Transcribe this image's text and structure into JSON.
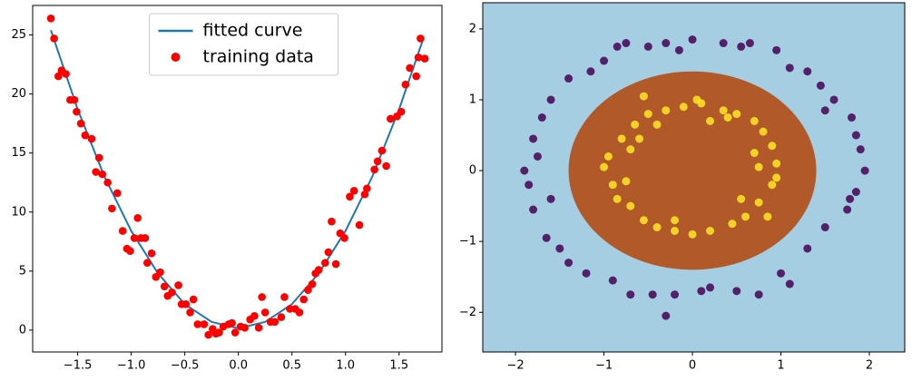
{
  "chart_data": [
    {
      "type": "line",
      "xlim": [
        -1.92,
        1.9
      ],
      "ylim": [
        -1.85,
        27.5
      ],
      "xticks": [
        {
          "value": -1.5,
          "label": "−1.5"
        },
        {
          "value": -1.0,
          "label": "−1.0"
        },
        {
          "value": -0.5,
          "label": "−0.5"
        },
        {
          "value": 0.0,
          "label": "0.0"
        },
        0.5,
        {
          "value": 1.0,
          "label": "1.0"
        },
        1.5
      ],
      "yticks": [
        0,
        5,
        10,
        15,
        20,
        25
      ],
      "legend": "upper center",
      "series": [
        {
          "name": "fitted curve",
          "type": "line",
          "color": "#1f77b4",
          "x": [
            -1.75,
            -1.5,
            -1.25,
            -1,
            -0.75,
            -0.5,
            -0.25,
            0,
            0.25,
            0.5,
            0.75,
            1,
            1.25,
            1.5,
            1.73
          ],
          "values": [
            25.4,
            18.7,
            13.0,
            8.4,
            4.8,
            2.2,
            0.7,
            0.15,
            0.7,
            2.2,
            4.8,
            8.4,
            13.0,
            18.7,
            24.8
          ]
        },
        {
          "name": "training data",
          "type": "scatter",
          "color": "#ff0000",
          "x": [
            -1.75,
            -1.72,
            -1.68,
            -1.65,
            -1.61,
            -1.57,
            -1.53,
            -1.51,
            -1.47,
            -1.43,
            -1.37,
            -1.33,
            -1.3,
            -1.27,
            -1.22,
            -1.18,
            -1.13,
            -1.08,
            -1.04,
            -1.01,
            -0.97,
            -0.94,
            -0.91,
            -0.87,
            -0.85,
            -0.81,
            -0.77,
            -0.73,
            -0.69,
            -0.66,
            -0.62,
            -0.56,
            -0.53,
            -0.49,
            -0.45,
            -0.42,
            -0.38,
            -0.32,
            -0.28,
            -0.24,
            -0.21,
            -0.18,
            -0.14,
            -0.09,
            -0.06,
            -0.03,
            0.02,
            0.06,
            0.11,
            0.15,
            0.19,
            0.22,
            0.25,
            0.3,
            0.34,
            0.4,
            0.43,
            0.48,
            0.53,
            0.57,
            0.61,
            0.65,
            0.69,
            0.72,
            0.75,
            0.81,
            0.84,
            0.87,
            0.91,
            0.95,
            0.99,
            1.04,
            1.08,
            1.13,
            1.18,
            1.2,
            1.27,
            1.3,
            1.34,
            1.38,
            1.42,
            1.48,
            1.52,
            1.56,
            1.6,
            1.66,
            1.68,
            1.7,
            1.74
          ],
          "values": [
            26.4,
            24.7,
            21.5,
            22.0,
            21.7,
            19.5,
            19.5,
            18.5,
            17.5,
            16.5,
            16.2,
            13.4,
            14.6,
            13.2,
            12.5,
            10.3,
            11.6,
            8.4,
            6.9,
            6.7,
            7.8,
            9.5,
            7.8,
            7.8,
            5.7,
            6.5,
            4.5,
            4.9,
            3.7,
            2.9,
            3.2,
            3.8,
            2.2,
            2.2,
            1.5,
            2.6,
            0.5,
            0.5,
            -0.4,
            0.1,
            -0.3,
            -0.2,
            0.3,
            0.5,
            0.6,
            -0.2,
            0.3,
            0.2,
            0.9,
            1.2,
            0.2,
            2.8,
            1.5,
            0.7,
            0.7,
            1.1,
            2.8,
            1.8,
            1.8,
            1.5,
            2.6,
            3.4,
            3.9,
            4.8,
            5.1,
            5.7,
            6.6,
            9.2,
            5.6,
            8.2,
            7.8,
            11.3,
            11.8,
            8.9,
            11.5,
            12.0,
            13.6,
            14.3,
            15.2,
            13.9,
            17.9,
            18.1,
            18.5,
            20.8,
            22.2,
            21.5,
            23.1,
            24.7,
            23.0
          ]
        }
      ]
    },
    {
      "type": "scatter",
      "xlim": [
        -2.37,
        2.4
      ],
      "ylim": [
        -2.56,
        2.37
      ],
      "xticks": [
        {
          "value": -2,
          "label": "−2"
        },
        {
          "value": -1,
          "label": "−1"
        },
        0,
        1,
        2
      ],
      "yticks": [
        {
          "value": -2,
          "label": "−2"
        },
        {
          "value": -1,
          "label": "−1"
        },
        0,
        1,
        2
      ],
      "background": "#a6cee3",
      "regions": [
        {
          "color": "#b15928",
          "center": [
            0,
            0
          ],
          "radius": 1.4
        }
      ],
      "series": [
        {
          "color": "#440154",
          "x": [
            1.95,
            1.9,
            1.85,
            1.8,
            1.6,
            1.45,
            1.3,
            1.1,
            0.95,
            0.65,
            0.35,
            0.0,
            -0.3,
            -0.5,
            -0.75,
            -1.0,
            -1.15,
            -1.4,
            -1.6,
            -1.7,
            -1.8,
            -1.75,
            -1.9,
            -1.85,
            -1.8,
            -1.65,
            -1.5,
            -1.4,
            -1.2,
            -0.9,
            -0.7,
            -0.45,
            -0.2,
            0.1,
            0.5,
            0.75,
            1.0,
            1.3,
            1.5,
            1.75,
            1.85,
            1.78,
            -0.3,
            0.55,
            -0.15,
            1.5,
            -1.6,
            1.1,
            -0.85,
            0.2
          ],
          "values": [
            0.0,
            0.3,
            0.5,
            0.75,
            1.0,
            1.2,
            1.4,
            1.45,
            1.7,
            1.8,
            1.8,
            1.85,
            1.8,
            1.75,
            1.8,
            1.55,
            1.4,
            1.3,
            1.0,
            0.75,
            0.45,
            0.2,
            0.0,
            -0.2,
            -0.55,
            -0.95,
            -1.1,
            -1.3,
            -1.45,
            -1.55,
            -1.75,
            -1.75,
            -1.75,
            -1.7,
            -1.7,
            -1.75,
            -1.45,
            -1.1,
            -0.8,
            -0.55,
            -0.3,
            -0.4,
            -2.05,
            1.75,
            1.7,
            0.85,
            -0.4,
            -1.6,
            1.75,
            -1.65
          ]
        },
        {
          "color": "#fde725",
          "x": [
            0.95,
            0.9,
            0.8,
            0.7,
            0.5,
            0.35,
            0.1,
            -0.1,
            -0.3,
            -0.5,
            -0.65,
            -0.8,
            -0.95,
            -1.0,
            -0.9,
            -0.85,
            -0.7,
            -0.55,
            -0.4,
            -0.2,
            0.0,
            0.2,
            0.45,
            0.6,
            0.75,
            0.9,
            0.95,
            0.7,
            0.75,
            -0.7,
            -0.75,
            0.4,
            -0.4,
            0.2,
            -0.2,
            0.55,
            -0.6,
            0.05,
            -0.55,
            0.85
          ],
          "values": [
            0.1,
            0.35,
            0.55,
            0.7,
            0.8,
            0.85,
            0.95,
            0.9,
            0.85,
            0.8,
            0.65,
            0.45,
            0.2,
            0.05,
            -0.2,
            -0.4,
            -0.5,
            -0.7,
            -0.8,
            -0.85,
            -0.9,
            -0.85,
            -0.75,
            -0.65,
            -0.45,
            -0.2,
            -0.1,
            0.25,
            0.05,
            0.3,
            -0.15,
            0.75,
            0.65,
            0.7,
            -0.7,
            -0.4,
            0.45,
            1.0,
            1.05,
            -0.65
          ]
        }
      ]
    }
  ]
}
